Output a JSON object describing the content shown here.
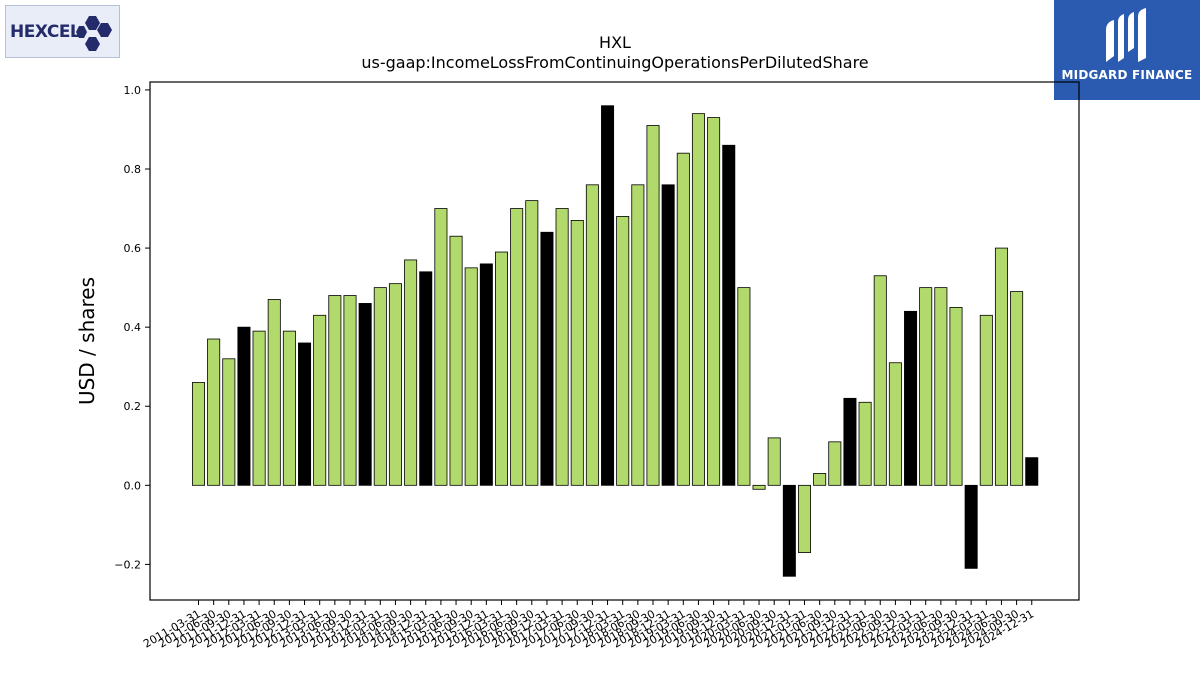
{
  "logos": {
    "left_text": "HEXCEL",
    "right_text": "MIDGARD FINANCE"
  },
  "colors": {
    "bar_default": "#b2d96c",
    "bar_annual": "#000000",
    "bar_edge": "#000000",
    "hexcel_navy": "#232b6b",
    "midgard_blue": "#2a5bb0"
  },
  "chart_data": {
    "type": "bar",
    "title": "HXL",
    "subtitle": "us-gaap:IncomeLossFromContinuingOperationsPerDilutedShare",
    "xlabel": "",
    "ylabel": "USD / shares",
    "ylim": [
      -0.29,
      1.02
    ],
    "yticks": [
      -0.2,
      0.0,
      0.2,
      0.4,
      0.6,
      0.8,
      1.0
    ],
    "ytick_labels": [
      "−0.2",
      "0.0",
      "0.2",
      "0.4",
      "0.6",
      "0.8",
      "1.0"
    ],
    "grid": false,
    "categories": [
      "2011-03-31",
      "2011-06-30",
      "2011-09-30",
      "2011-12-31",
      "2012-03-31",
      "2012-06-30",
      "2012-09-30",
      "2012-12-31",
      "2013-03-31",
      "2013-06-30",
      "2013-09-30",
      "2013-12-31",
      "2014-03-31",
      "2014-06-30",
      "2014-09-30",
      "2014-12-31",
      "2015-03-31",
      "2015-06-30",
      "2015-09-30",
      "2015-12-31",
      "2016-03-31",
      "2016-06-30",
      "2016-09-30",
      "2016-12-31",
      "2017-03-31",
      "2017-06-30",
      "2017-09-30",
      "2017-12-31",
      "2018-03-31",
      "2018-06-30",
      "2018-09-30",
      "2018-12-31",
      "2019-03-31",
      "2019-06-30",
      "2019-09-30",
      "2019-12-31",
      "2020-03-31",
      "2020-06-30",
      "2020-09-30",
      "2020-12-31",
      "2021-03-31",
      "2021-06-30",
      "2021-09-30",
      "2021-12-31",
      "2022-03-31",
      "2022-06-30",
      "2022-09-30",
      "2022-12-31",
      "2023-03-31",
      "2023-06-30",
      "2023-09-30",
      "2023-12-31",
      "2024-03-31",
      "2024-06-30",
      "2024-09-30",
      "2024-12-31"
    ],
    "values": [
      0.26,
      0.37,
      0.32,
      0.4,
      0.39,
      0.47,
      0.39,
      0.36,
      0.43,
      0.48,
      0.48,
      0.46,
      0.5,
      0.51,
      0.57,
      0.54,
      0.7,
      0.63,
      0.55,
      0.56,
      0.59,
      0.7,
      0.72,
      0.64,
      0.7,
      0.67,
      0.76,
      0.96,
      0.68,
      0.76,
      0.91,
      0.76,
      0.84,
      0.94,
      0.93,
      0.86,
      0.5,
      -0.01,
      0.12,
      -0.23,
      -0.17,
      0.03,
      0.11,
      0.22,
      0.21,
      0.53,
      0.31,
      0.44,
      0.5,
      0.5,
      0.45,
      -0.21,
      0.43,
      0.6,
      0.49,
      0.07
    ],
    "highlighted": [
      false,
      false,
      false,
      true,
      false,
      false,
      false,
      true,
      false,
      false,
      false,
      true,
      false,
      false,
      false,
      true,
      false,
      false,
      false,
      true,
      false,
      false,
      false,
      true,
      false,
      false,
      false,
      true,
      false,
      false,
      false,
      true,
      false,
      false,
      false,
      true,
      false,
      false,
      false,
      true,
      false,
      false,
      false,
      true,
      false,
      false,
      false,
      true,
      false,
      false,
      false,
      true,
      false,
      false,
      false,
      true
    ]
  }
}
